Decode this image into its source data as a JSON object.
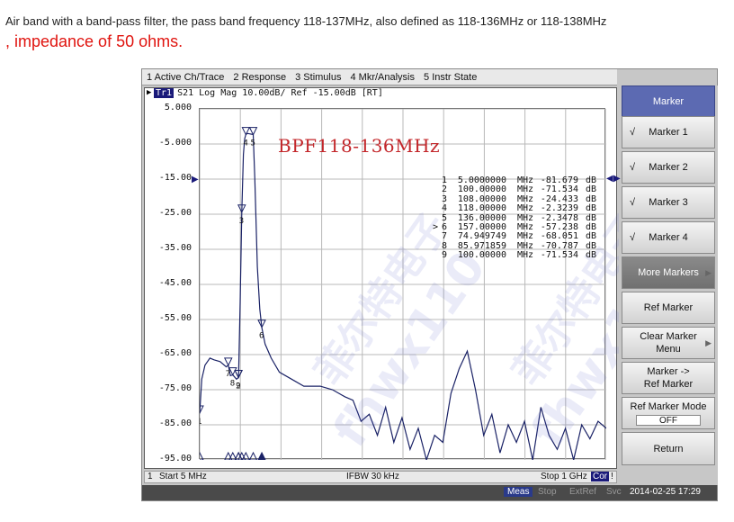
{
  "caption": {
    "line1": "Air band with a band-pass filter, the pass band frequency 118-137MHz, also defined as 118-136MHz or 118-138MHz",
    "line2": ", impedance of 50 ohms."
  },
  "menu": [
    "1 Active Ch/Trace",
    "2 Response",
    "3 Stimulus",
    "4 Mkr/Analysis",
    "5 Instr State"
  ],
  "trace_header": {
    "tag": "Tr1",
    "text": "S21 Log Mag 10.00dB/ Ref -15.00dB [RT]"
  },
  "chart_title": "BPF118-136MHz",
  "y_ticks": [
    "5.000",
    "-5.000",
    "-15.00",
    "-25.00",
    "-35.00",
    "-45.00",
    "-55.00",
    "-65.00",
    "-75.00",
    "-85.00",
    "-95.00"
  ],
  "markers": [
    {
      "num": "1",
      "active": "",
      "freq": "5.0000000",
      "unit": "MHz",
      "value": "-81.679",
      "db": "dB"
    },
    {
      "num": "2",
      "active": "",
      "freq": "100.00000",
      "unit": "MHz",
      "value": "-71.534",
      "db": "dB"
    },
    {
      "num": "3",
      "active": "",
      "freq": "108.00000",
      "unit": "MHz",
      "value": "-24.433",
      "db": "dB"
    },
    {
      "num": "4",
      "active": "",
      "freq": "118.00000",
      "unit": "MHz",
      "value": "-2.3239",
      "db": "dB"
    },
    {
      "num": "5",
      "active": "",
      "freq": "136.00000",
      "unit": "MHz",
      "value": "-2.3478",
      "db": "dB"
    },
    {
      "num": "6",
      "active": ">",
      "freq": "157.00000",
      "unit": "MHz",
      "value": "-57.238",
      "db": "dB"
    },
    {
      "num": "7",
      "active": "",
      "freq": "74.949749",
      "unit": "MHz",
      "value": "-68.051",
      "db": "dB"
    },
    {
      "num": "8",
      "active": "",
      "freq": "85.971859",
      "unit": "MHz",
      "value": "-70.787",
      "db": "dB"
    },
    {
      "num": "9",
      "active": "",
      "freq": "100.00000",
      "unit": "MHz",
      "value": "-71.534",
      "db": "dB"
    }
  ],
  "status": {
    "channel": "1",
    "start": "Start 5 MHz",
    "ifbw": "IFBW 30 kHz",
    "stop": "Stop 1 GHz",
    "cor": "Cor",
    "flag": "!"
  },
  "bottom": {
    "meas": "Meas",
    "stop": "Stop",
    "extref": "ExtRef",
    "svc": "Svc",
    "datetime": "2014-02-25 17:29"
  },
  "softkeys": [
    {
      "label": "Marker",
      "style": "head"
    },
    {
      "label": "Marker 1",
      "check": "√"
    },
    {
      "label": "Marker 2",
      "check": "√"
    },
    {
      "label": "Marker 3",
      "check": "√"
    },
    {
      "label": "Marker 4",
      "check": "√"
    },
    {
      "label": "More Markers",
      "style": "dark"
    },
    {
      "label": "Ref Marker"
    },
    {
      "label1": "Clear Marker",
      "label2": "Menu"
    },
    {
      "label1": "Marker ->",
      "label2": "Ref Marker"
    },
    {
      "label": "Ref Marker Mode",
      "value": "OFF"
    },
    {
      "label": "Return"
    }
  ],
  "watermark": {
    "cn": "菲尔特电子",
    "en": "fhwx110"
  },
  "chart_data": {
    "type": "line",
    "title": "BPF118-136MHz",
    "xlabel": "",
    "ylabel": "",
    "x_unit": "MHz",
    "xlim": [
      5,
      1000
    ],
    "ylim": [
      -95,
      5
    ],
    "y_div": 10,
    "ref_level": -15,
    "series": [
      {
        "x": [
          5,
          10,
          18,
          30,
          40,
          55,
          70,
          75,
          80,
          86,
          95,
          100,
          104,
          108,
          112,
          115,
          118,
          122,
          127,
          132,
          136,
          140,
          146,
          152,
          157,
          165,
          180,
          200,
          230,
          260,
          300,
          330,
          360,
          380,
          400,
          420,
          440,
          460,
          480,
          500,
          520,
          540,
          560,
          580,
          600,
          620,
          640,
          660,
          680,
          700,
          720,
          740,
          760,
          780,
          800,
          820,
          840,
          860,
          880,
          900,
          920,
          940,
          960,
          980,
          1000
        ],
        "y": [
          -81.7,
          -72,
          -68,
          -66,
          -66.5,
          -67,
          -68.5,
          -68,
          -71,
          -70.8,
          -72,
          -71.5,
          -50,
          -24.4,
          -8,
          -3.5,
          -2.3,
          -2,
          -2.1,
          -2.2,
          -2.3,
          -15,
          -40,
          -52,
          -57.2,
          -62,
          -66,
          -70,
          -72,
          -74,
          -74,
          -75,
          -77,
          -78,
          -84,
          -82,
          -88,
          -80,
          -90,
          -83,
          -92,
          -86,
          -95,
          -88,
          -90,
          -76,
          -69,
          -64,
          -75,
          -88,
          -82,
          -93,
          -85,
          -90,
          -84,
          -95,
          -80,
          -88,
          -92,
          -86,
          -95,
          -85,
          -89,
          -84,
          -86
        ]
      }
    ],
    "marker_values": [
      {
        "marker": 1,
        "freq_mhz": 5.0,
        "db": -81.679
      },
      {
        "marker": 2,
        "freq_mhz": 100.0,
        "db": -71.534
      },
      {
        "marker": 3,
        "freq_mhz": 108.0,
        "db": -24.433
      },
      {
        "marker": 4,
        "freq_mhz": 118.0,
        "db": -2.3239
      },
      {
        "marker": 5,
        "freq_mhz": 136.0,
        "db": -2.3478
      },
      {
        "marker": 6,
        "freq_mhz": 157.0,
        "db": -57.238
      },
      {
        "marker": 7,
        "freq_mhz": 74.949749,
        "db": -68.051
      },
      {
        "marker": 8,
        "freq_mhz": 85.971859,
        "db": -70.787
      },
      {
        "marker": 9,
        "freq_mhz": 100.0,
        "db": -71.534
      }
    ]
  }
}
